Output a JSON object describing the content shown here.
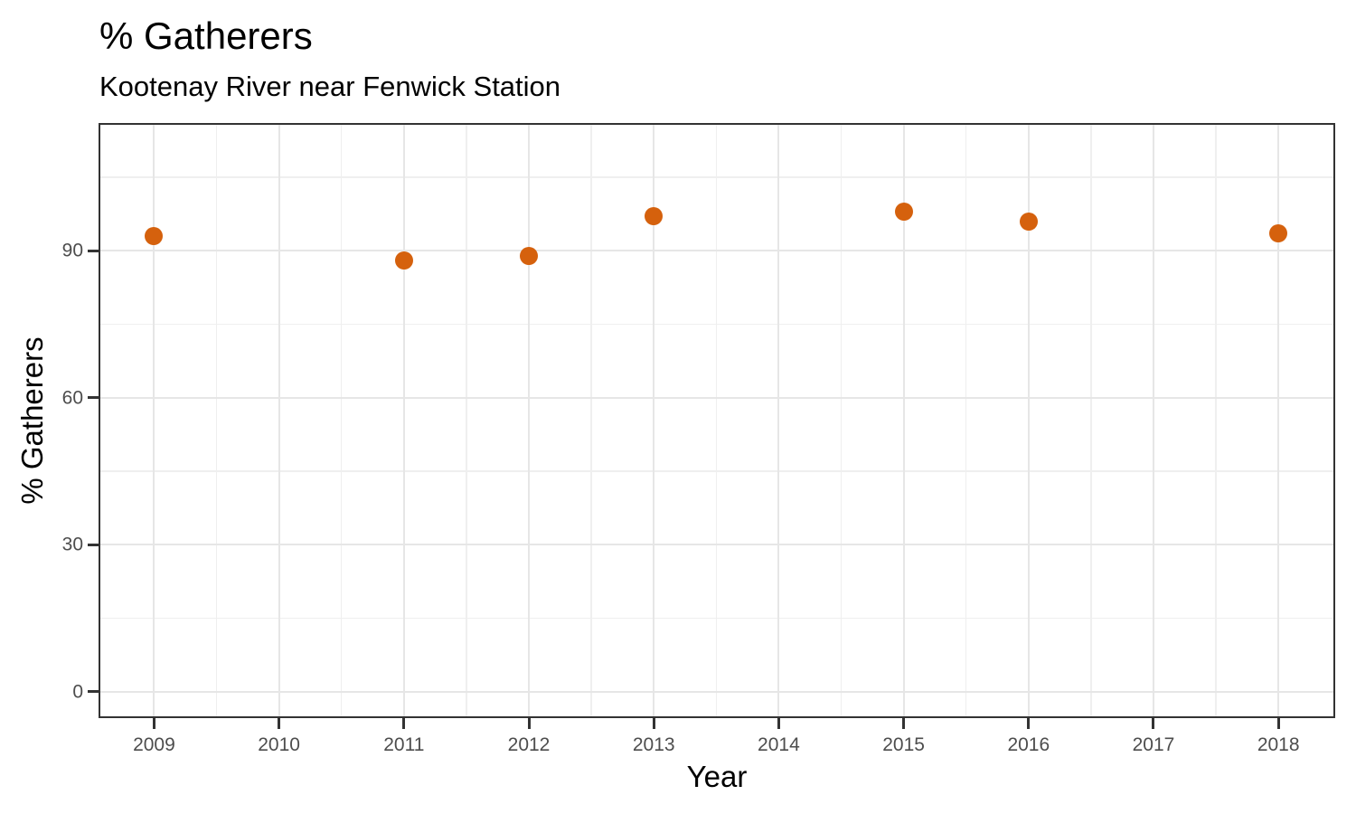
{
  "chart_data": {
    "type": "scatter",
    "title": "% Gatherers",
    "subtitle": "Kootenay River near Fenwick Station",
    "xlabel": "Year",
    "ylabel": "% Gatherers",
    "points": [
      {
        "x": 2009,
        "y": 93
      },
      {
        "x": 2011,
        "y": 88
      },
      {
        "x": 2012,
        "y": 89
      },
      {
        "x": 2013,
        "y": 97
      },
      {
        "x": 2015,
        "y": 98
      },
      {
        "x": 2016,
        "y": 96
      },
      {
        "x": 2018,
        "y": 93.5
      }
    ],
    "x_ticks": [
      2009,
      2010,
      2011,
      2012,
      2013,
      2014,
      2015,
      2016,
      2017,
      2018
    ],
    "y_ticks": [
      0,
      30,
      60,
      90
    ],
    "x_minor_ticks": [
      2009.5,
      2010.5,
      2011.5,
      2012.5,
      2013.5,
      2014.5,
      2015.5,
      2016.5,
      2017.5
    ],
    "y_minor_ticks": [
      15,
      45,
      75,
      105
    ],
    "xlim": [
      2008.57,
      2018.44
    ],
    "ylim": [
      -5,
      115.7
    ],
    "grid": "major+minor",
    "legend": "none",
    "colors": {
      "point": "#D5610D",
      "grid_major": "#E6E6E6",
      "grid_minor": "#EFEFEF",
      "panel_border": "#333333",
      "tick": "#333333",
      "tick_label": "#4D4D4D",
      "text": "#000000",
      "background": "#FFFFFF"
    }
  }
}
